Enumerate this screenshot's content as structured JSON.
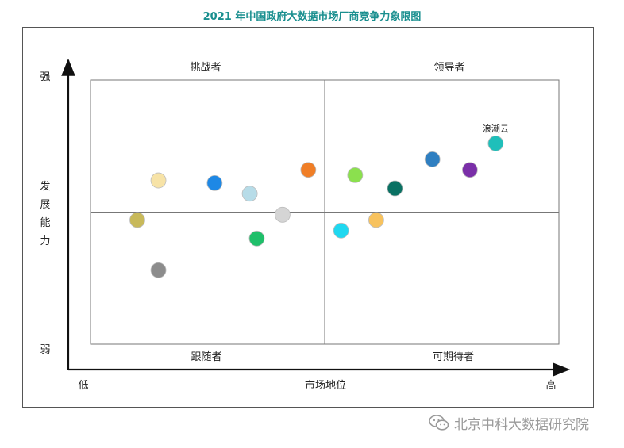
{
  "title": "2021 年中国政府大数据市场厂商竞争力象限图",
  "watermark": "北京中科大数据研究院",
  "chart_data": {
    "type": "scatter",
    "xlabel": "市场地位",
    "x_low": "低",
    "x_high": "高",
    "ylabel": "发展能力",
    "y_high": "强",
    "y_low": "弱",
    "xlim": [
      0,
      100
    ],
    "ylim": [
      0,
      100
    ],
    "grid": false,
    "quadrants": {
      "top_left": "挑战者",
      "top_right": "领导者",
      "bottom_left": "跟随者",
      "bottom_right": "可期待者"
    },
    "points": [
      {
        "x": 10,
        "y": 47,
        "color": "#c8b95a",
        "label": ""
      },
      {
        "x": 14.5,
        "y": 62,
        "color": "#f7e3a7",
        "label": ""
      },
      {
        "x": 14.5,
        "y": 28,
        "color": "#8c8c8c",
        "label": ""
      },
      {
        "x": 26.5,
        "y": 61,
        "color": "#1e88e5",
        "label": ""
      },
      {
        "x": 34,
        "y": 57,
        "color": "#b7dce8",
        "label": ""
      },
      {
        "x": 35.5,
        "y": 40,
        "color": "#1fbf6a",
        "label": ""
      },
      {
        "x": 41,
        "y": 49,
        "color": "#d5d5d5",
        "label": ""
      },
      {
        "x": 46.5,
        "y": 66,
        "color": "#f07e26",
        "label": ""
      },
      {
        "x": 53.5,
        "y": 43,
        "color": "#1fd8f0",
        "label": ""
      },
      {
        "x": 56.5,
        "y": 64,
        "color": "#8be04e",
        "label": ""
      },
      {
        "x": 61,
        "y": 47,
        "color": "#f7c25e",
        "label": ""
      },
      {
        "x": 65,
        "y": 59,
        "color": "#0a7163",
        "label": ""
      },
      {
        "x": 73,
        "y": 70,
        "color": "#2f7fc1",
        "label": ""
      },
      {
        "x": 81,
        "y": 66,
        "color": "#7a2fa8",
        "label": ""
      },
      {
        "x": 86.5,
        "y": 76,
        "color": "#1fbfba",
        "label": "浪潮云"
      }
    ]
  }
}
